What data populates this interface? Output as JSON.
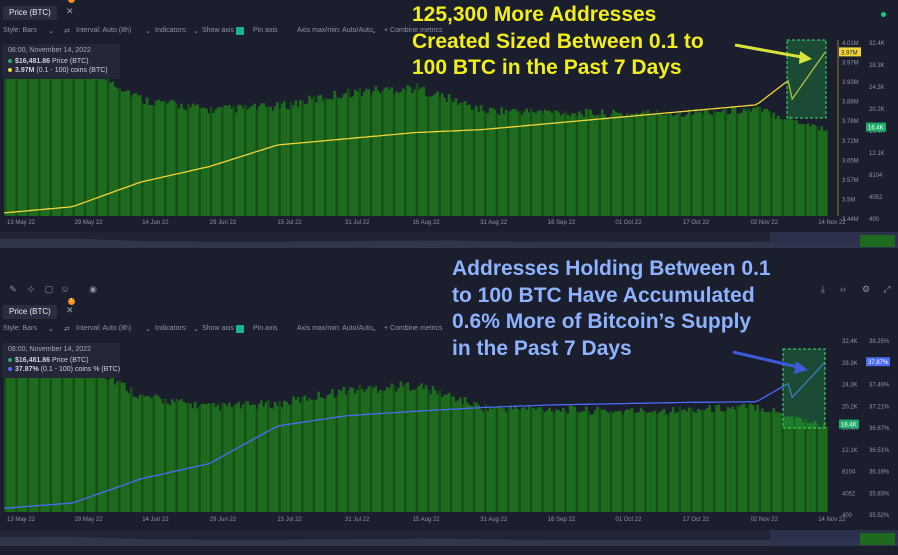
{
  "colors": {
    "background": "#1b1e2d",
    "volume": "#1e6a1e",
    "volume_dark": "#154f15",
    "yellow_line": "#f2d53c",
    "blue_line": "#4a6cf7",
    "highlight": "#1fa046",
    "annot_yellow": "#f2ee1b",
    "annot_blue": "#8fb2ff",
    "price_green": "#1fae6a"
  },
  "panel1": {
    "tab_label": "Price (BTC)",
    "tab_badge": "1",
    "controls": {
      "style": "Style: Bars",
      "interval": "Interval: Auto (8h)",
      "indicators": "Indicators:",
      "show_axis": "Show axis",
      "pin_axis": "Pin axis",
      "axis_maxmin": "Axis max/min: Auto/Auto",
      "combine": "+ Combine metrics"
    },
    "legend": {
      "timestamp": "08:00, November 14, 2022",
      "price_value": "$16,481.86",
      "price_label": "Price (BTC)",
      "metric_value": "3.97M",
      "metric_label": "(0.1 - 100) coins (BTC)"
    },
    "axis_left": [
      "4.01M",
      "3.97M",
      "3.93M",
      "3.88M",
      "3.78M",
      "3.72M",
      "3.65M",
      "3.57M",
      "3.5M",
      "3.44M"
    ],
    "axis_right": [
      "32.4K",
      "28.3K",
      "24.3K",
      "20.2K",
      "16.4K",
      "12.1K",
      "8104",
      "4052",
      "400"
    ],
    "current_left": "3.97M",
    "current_right": "16.4K",
    "x_labels": [
      "13 May 22",
      "29 May 22",
      "14 Jun 22",
      "29 Jun 22",
      "15 Jul 22",
      "31 Jul 22",
      "15 Aug 22",
      "31 Aug 22",
      "16 Sep 22",
      "01 Oct 22",
      "17 Oct 22",
      "02 Nov 22",
      "14 Nov 22"
    ]
  },
  "panel2": {
    "tab_label": "Price (BTC)",
    "tab_badge": "1",
    "controls": {
      "style": "Style: Bars",
      "interval": "Interval: Auto (8h)",
      "indicators": "Indicators:",
      "show_axis": "Show axis",
      "pin_axis": "Pin axis",
      "axis_maxmin": "Axis max/min: Auto/Auto",
      "combine": "+ Combine metrics"
    },
    "legend": {
      "timestamp": "08:00, November 14, 2022",
      "price_value": "$16,481.86",
      "price_label": "Price (BTC)",
      "metric_value": "37.87%",
      "metric_label": "(0.1 - 100) coins % (BTC)"
    },
    "axis_left": [
      "32.4K",
      "28.3K",
      "24.3K",
      "20.2K",
      "16.4K",
      "12.1K",
      "8104",
      "4052",
      "400"
    ],
    "axis_right": [
      "38.25%",
      "37.87%",
      "37.49%",
      "37.21%",
      "36.87%",
      "36.51%",
      "36.18%",
      "35.83%",
      "35.52%"
    ],
    "current_left": "16.4K",
    "current_right": "37.87%",
    "x_labels": [
      "13 May 22",
      "29 May 22",
      "14 Jun 22",
      "29 Jun 22",
      "15 Jul 22",
      "31 Jul 22",
      "15 Aug 22",
      "31 Aug 22",
      "16 Sep 22",
      "01 Oct 22",
      "17 Oct 22",
      "02 Nov 22",
      "14 Nov 22"
    ]
  },
  "annotations": {
    "top": [
      "125,300 More Addresses",
      "Created Sized Between 0.1 to",
      "100 BTC in the Past 7 Days"
    ],
    "bottom": [
      "Addresses Holding Between 0.1",
      "to 100 BTC Have Accumulated",
      "0.6% More of Bitcoin’s Supply",
      "in the Past 7 Days"
    ]
  },
  "icons": [
    "pencil-icon",
    "crosshair-icon",
    "sticky-note-icon",
    "emoji-icon",
    "eye-icon",
    "download-icon",
    "code-icon",
    "settings-icon",
    "fullscreen-icon"
  ],
  "chart_data": [
    {
      "type": "line",
      "title": "",
      "x": [
        "13 May 22",
        "29 May 22",
        "14 Jun 22",
        "29 Jun 22",
        "15 Jul 22",
        "31 Jul 22",
        "15 Aug 22",
        "31 Aug 22",
        "16 Sep 22",
        "01 Oct 22",
        "17 Oct 22",
        "02 Nov 22",
        "14 Nov 22"
      ],
      "series": [
        {
          "name": "Price (BTC)",
          "values": [
            29500,
            29800,
            22000,
            20100,
            20700,
            23300,
            24200,
            20000,
            19700,
            19300,
            19600,
            20200,
            16481
          ]
        },
        {
          "name": "(0.1 - 100) coins (BTC)",
          "values": [
            3.45,
            3.47,
            3.55,
            3.6,
            3.67,
            3.69,
            3.71,
            3.72,
            3.74,
            3.76,
            3.78,
            3.8,
            3.97
          ]
        }
      ]
    },
    {
      "type": "line",
      "title": "",
      "x": [
        "13 May 22",
        "29 May 22",
        "14 Jun 22",
        "29 Jun 22",
        "15 Jul 22",
        "31 Jul 22",
        "15 Aug 22",
        "31 Aug 22",
        "16 Sep 22",
        "01 Oct 22",
        "17 Oct 22",
        "02 Nov 22",
        "14 Nov 22"
      ],
      "series": [
        {
          "name": "Price (BTC)",
          "values": [
            29500,
            29800,
            22000,
            20100,
            20700,
            23300,
            24200,
            20000,
            19700,
            19300,
            19600,
            20200,
            16481
          ]
        },
        {
          "name": "(0.1 - 100) coins % (BTC)",
          "values": [
            35.58,
            35.66,
            36.04,
            36.28,
            36.87,
            37.03,
            37.1,
            37.16,
            37.2,
            37.22,
            37.24,
            37.25,
            37.87
          ]
        }
      ]
    }
  ]
}
